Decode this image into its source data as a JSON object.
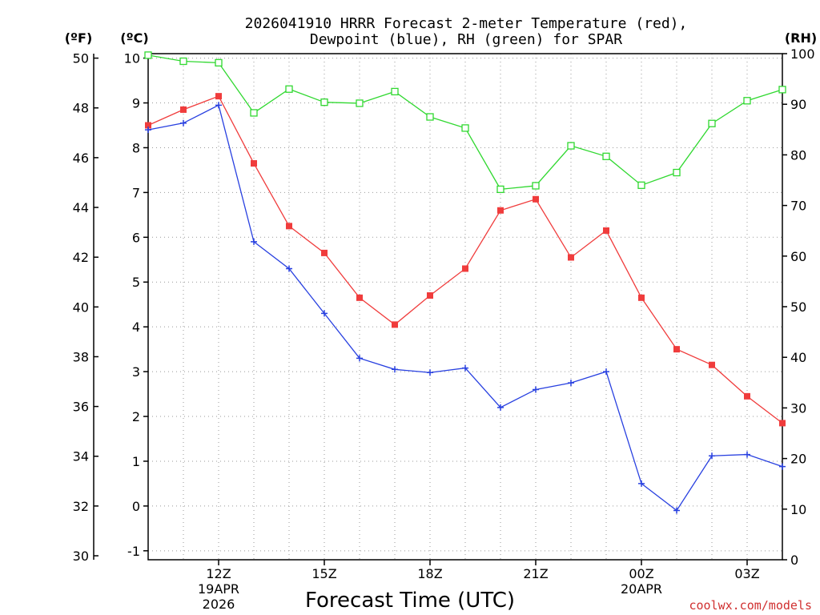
{
  "chart_data": {
    "type": "line",
    "title_line1": "2026041910 HRRR Forecast 2-meter Temperature (red),",
    "title_line2": "Dewpoint (blue), RH (green) for SPAR",
    "xlabel": "Forecast Time (UTC)",
    "credit": "coolwx.com/models",
    "unit_labels": {
      "fahrenheit": "(ºF)",
      "celsius": "(ºC)",
      "rh": "(RH)"
    },
    "left_axis_celsius": {
      "range": [
        -1.2,
        10.1
      ],
      "ticks": [
        -1,
        0,
        1,
        2,
        3,
        4,
        5,
        6,
        7,
        8,
        9,
        10
      ]
    },
    "left_axis_fahrenheit": {
      "range": [
        29.84,
        50.18
      ],
      "ticks": [
        30,
        32,
        34,
        36,
        38,
        40,
        42,
        44,
        46,
        48,
        50
      ]
    },
    "right_axis_rh": {
      "range": [
        0,
        100
      ],
      "ticks": [
        0,
        10,
        20,
        30,
        40,
        50,
        60,
        70,
        80,
        90,
        100
      ]
    },
    "x_hours": [
      10,
      11,
      12,
      13,
      14,
      15,
      16,
      17,
      18,
      19,
      20,
      21,
      22,
      23,
      24,
      25,
      26,
      27,
      28
    ],
    "x_range": [
      10,
      28
    ],
    "x_ticks": [
      {
        "hour": 12,
        "label": "12Z",
        "sub1": "19APR",
        "sub2": "2026"
      },
      {
        "hour": 15,
        "label": "15Z",
        "sub1": "",
        "sub2": ""
      },
      {
        "hour": 18,
        "label": "18Z",
        "sub1": "",
        "sub2": ""
      },
      {
        "hour": 21,
        "label": "21Z",
        "sub1": "",
        "sub2": ""
      },
      {
        "hour": 24,
        "label": "00Z",
        "sub1": "20APR",
        "sub2": ""
      },
      {
        "hour": 27,
        "label": "03Z",
        "sub1": "",
        "sub2": ""
      }
    ],
    "grid": true,
    "series": [
      {
        "name": "2-meter Temperature",
        "units": "C",
        "color": "#f03c3c",
        "marker": "filled-square",
        "values": [
          8.5,
          8.85,
          9.15,
          7.65,
          6.25,
          5.65,
          4.65,
          4.05,
          4.7,
          5.3,
          6.6,
          6.85,
          5.55,
          6.15,
          4.65,
          3.5,
          3.15,
          2.45,
          1.85
        ]
      },
      {
        "name": "Dewpoint",
        "units": "C",
        "color": "#2840e0",
        "marker": "plus",
        "values": [
          8.4,
          8.55,
          8.95,
          5.9,
          5.3,
          4.3,
          3.3,
          3.05,
          2.98,
          3.08,
          2.2,
          2.6,
          2.75,
          3.0,
          0.5,
          -0.1,
          1.12,
          1.15,
          0.88
        ]
      },
      {
        "name": "Relative Humidity",
        "units": "%",
        "color": "#30d830",
        "marker": "open-square",
        "values": [
          99.7,
          98.5,
          98.2,
          88.3,
          93.0,
          90.4,
          90.2,
          92.5,
          87.5,
          85.3,
          73.2,
          73.9,
          81.8,
          79.7,
          74.0,
          76.5,
          86.2,
          90.7,
          92.9
        ]
      }
    ]
  }
}
